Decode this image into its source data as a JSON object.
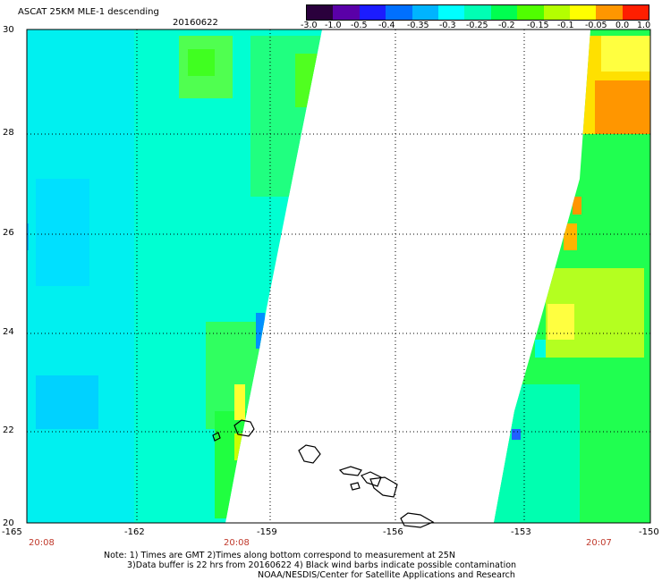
{
  "header": {
    "title": "ASCAT 25KM MLE-1 descending",
    "date": "20160622"
  },
  "colorbar": {
    "labels": [
      "-3.0",
      "-1.0",
      "-0.5",
      "-0.4",
      "-0.35",
      "-0.3",
      "-0.25",
      "-0.2",
      "-0.15",
      "-0.1",
      "-0.05",
      "0.0",
      "1.0"
    ],
    "colors": [
      "#2a003c",
      "#5a00a8",
      "#1c1cff",
      "#0070ff",
      "#00b4ff",
      "#00ffff",
      "#00ffb4",
      "#00ff50",
      "#50ff00",
      "#b4ff00",
      "#ffff00",
      "#ff9600",
      "#ff1e00"
    ]
  },
  "axes": {
    "x_labels": [
      "-165",
      "-162",
      "-159",
      "-156",
      "-153",
      "-150"
    ],
    "y_labels": [
      "30",
      "28",
      "26",
      "24",
      "22",
      "20"
    ]
  },
  "times": [
    "20:08",
    "20:08",
    "20:07"
  ],
  "notes": {
    "line1": "Note: 1) Times are GMT 2)Times along bottom correspond to measurement at 25N",
    "line2": "3)Data buffer is 22 hrs from 20160622 4) Black wind barbs indicate possible contamination",
    "line3": "NOAA/NESDIS/Center for Satellite Applications and Research"
  }
}
